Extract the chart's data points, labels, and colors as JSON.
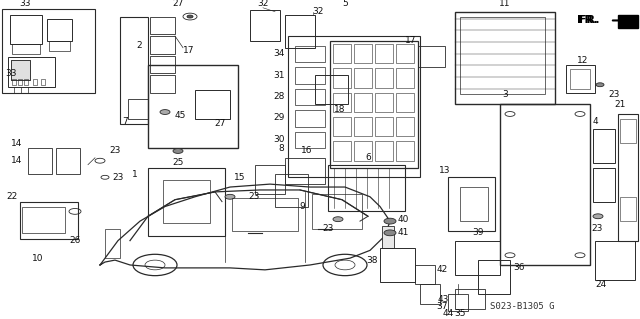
{
  "bg": "#f5f5f0",
  "lc": "#2a2a2a",
  "tc": "#111111",
  "fig_w": 6.4,
  "fig_h": 3.19,
  "dpi": 100,
  "diagram_code": "S023-B1305 G",
  "fs": 6.5,
  "fs_fr": 8
}
